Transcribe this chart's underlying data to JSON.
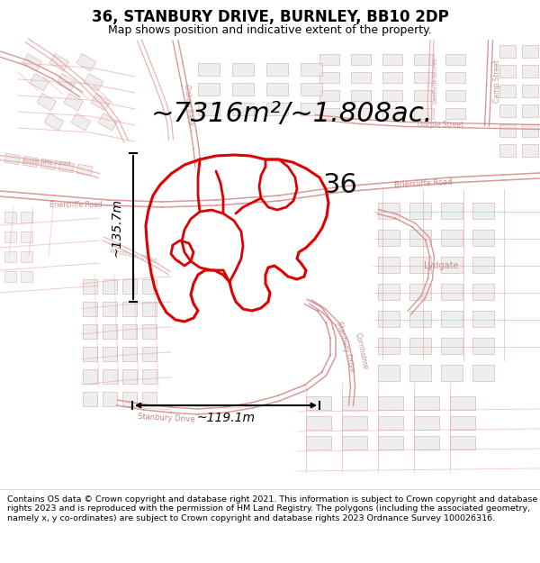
{
  "title": "36, STANBURY DRIVE, BURNLEY, BB10 2DP",
  "subtitle": "Map shows position and indicative extent of the property.",
  "area_text": "~7316m²/~1.808ac.",
  "width_text": "~119.1m",
  "height_text": "~135.7m",
  "number_label": "36",
  "footer": "Contains OS data © Crown copyright and database right 2021. This information is subject to Crown copyright and database rights 2023 and is reproduced with the permission of HM Land Registry. The polygons (including the associated geometry, namely x, y co-ordinates) are subject to Crown copyright and database rights 2023 Ordnance Survey 100026316.",
  "bg_color": "#ffffff",
  "map_bg": "#ffffff",
  "road_color": "#e8a0a0",
  "road_color_dark": "#d08080",
  "building_fill": "#e8e8e8",
  "building_edge": "#d0a0a0",
  "property_outline_color": "#dd0000",
  "title_color": "#000000",
  "footer_color": "#000000",
  "title_fontsize": 12,
  "subtitle_fontsize": 9,
  "area_fontsize": 22,
  "footer_fontsize": 6.8
}
